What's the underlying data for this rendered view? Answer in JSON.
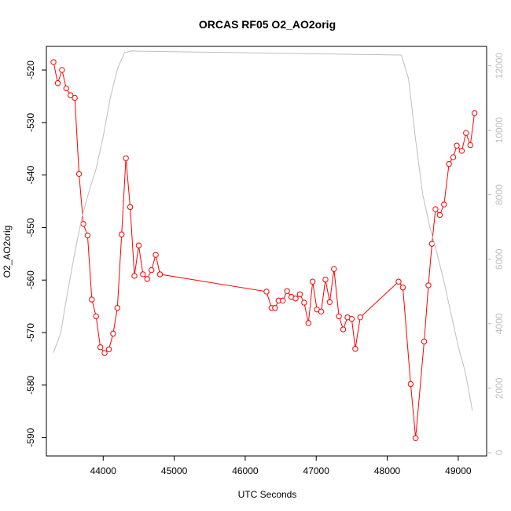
{
  "chart_data": {
    "type": "line",
    "title": "ORCAS RF05 O2_AO2orig",
    "xlabel": "UTC Seconds",
    "ylabel": "O2_AO2orig",
    "xlim": [
      43200,
      49400
    ],
    "ylim": [
      -593.5,
      -515.5
    ],
    "x_ticks": [
      "44000",
      "45000",
      "46000",
      "47000",
      "48000",
      "49000"
    ],
    "y_ticks": [
      "-520",
      "-530",
      "-540",
      "-550",
      "-560",
      "-570",
      "-580",
      "-590"
    ],
    "y2lim": [
      -100,
      12600
    ],
    "y2_ticks": [
      "0",
      "2000",
      "4000",
      "6000",
      "8000",
      "10000",
      "12000"
    ],
    "series": [
      {
        "color": "#ff0000",
        "style": "line-with-open-circles",
        "axis": "left",
        "x": [
          43300,
          43360,
          43420,
          43480,
          43540,
          43600,
          43660,
          43720,
          43780,
          43840,
          43900,
          43960,
          44020,
          44080,
          44140,
          44200,
          44260,
          44320,
          44380,
          44440,
          44500,
          44560,
          44620,
          44680,
          44740,
          44800,
          46300,
          46370,
          46420,
          46470,
          46530,
          46590,
          46650,
          46710,
          46770,
          46830,
          46890,
          46950,
          47010,
          47070,
          47130,
          47190,
          47250,
          47320,
          47380,
          47440,
          47500,
          47550,
          47620,
          48160,
          48220,
          48330,
          48400,
          48520,
          48580,
          48630,
          48680,
          48740,
          48800,
          48870,
          48930,
          48980,
          49050,
          49110,
          49170,
          49230
        ],
        "values": [
          -518.5,
          -522.5,
          -520.0,
          -523.5,
          -524.8,
          -525.3,
          -539.8,
          -549.3,
          -551.5,
          -563.7,
          -566.9,
          -572.8,
          -573.9,
          -573.2,
          -570.2,
          -565.3,
          -551.3,
          -536.8,
          -546.1,
          -559.2,
          -553.4,
          -558.9,
          -559.8,
          -558.1,
          -555.2,
          -558.9,
          -562.2,
          -565.3,
          -565.3,
          -563.9,
          -563.9,
          -562.1,
          -563.2,
          -563.5,
          -562.7,
          -564.3,
          -568.2,
          -560.3,
          -565.6,
          -566.0,
          -559.9,
          -564.2,
          -557.9,
          -566.9,
          -569.4,
          -567.1,
          -567.4,
          -573.1,
          -567.1,
          -560.3,
          -561.4,
          -579.8,
          -590.1,
          -571.7,
          -561.0,
          -553.1,
          -546.5,
          -547.6,
          -545.6,
          -537.9,
          -536.6,
          -534.4,
          -535.4,
          -532.0,
          -534.3,
          -528.2
        ]
      },
      {
        "color": "#bebebe",
        "style": "line",
        "axis": "right",
        "x": [
          43300,
          43400,
          43500,
          43600,
          43700,
          43800,
          43900,
          44000,
          44100,
          44200,
          44300,
          44400,
          44500,
          48200,
          48300,
          48400,
          48500,
          48600,
          48700,
          48800,
          48900,
          49000,
          49100,
          49200
        ],
        "values": [
          3100,
          3700,
          5000,
          6200,
          7300,
          8100,
          8800,
          9800,
          11000,
          11900,
          12400,
          12460,
          12450,
          12330,
          11600,
          9700,
          8000,
          7000,
          6200,
          5300,
          4300,
          3300,
          2500,
          1300
        ]
      }
    ]
  }
}
